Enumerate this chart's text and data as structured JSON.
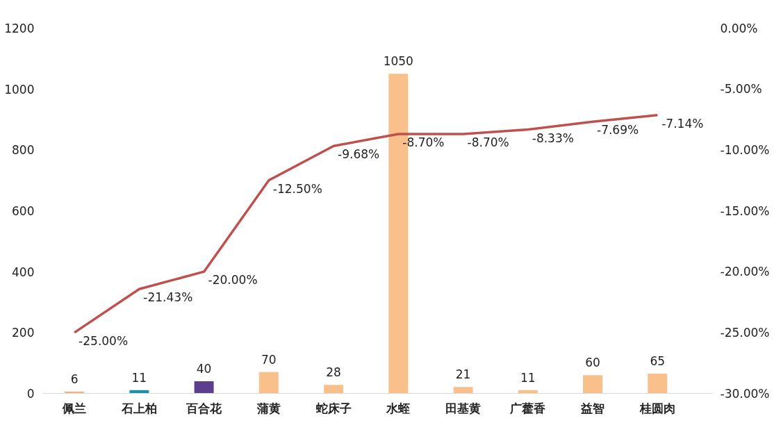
{
  "chart_data": {
    "type": "bar",
    "categories": [
      "佩兰",
      "石上柏",
      "百合花",
      "蒲黄",
      "蛇床子",
      "水蛭",
      "田基黄",
      "广藿香",
      "益智",
      "桂圆肉"
    ],
    "series": [
      {
        "colors": [
          "#f4b183",
          "#1f8fa6",
          "#5b3f8c",
          "#f9c08c",
          "#f9c08c",
          "#f9c08c",
          "#f9c08c",
          "#f9c08c",
          "#f9c08c",
          "#f9c08c"
        ],
        "values": [
          6,
          11,
          40,
          70,
          28,
          1050,
          21,
          11,
          60,
          65
        ],
        "value_labels": [
          "6",
          "11",
          "40",
          "70",
          "28",
          "1050",
          "21",
          "11",
          "60",
          "65"
        ]
      },
      {
        "type": "line",
        "axis": "y2",
        "color": "#c0504d",
        "values": [
          -25,
          -21.43,
          -20,
          -12.5,
          -9.68,
          -8.7,
          -8.7,
          -8.33,
          -7.69,
          -7.14
        ],
        "value_labels": [
          "-25.00%",
          "-21.43%",
          "-20.00%",
          "-12.50%",
          "-9.68%",
          "-8.70%",
          "-8.70%",
          "-8.33%",
          "-7.69%",
          "-7.14%"
        ]
      }
    ],
    "ylim": [
      0,
      1200
    ],
    "yticks": [
      0,
      200,
      400,
      600,
      800,
      1000,
      1200
    ],
    "y2lim": [
      -30,
      0
    ],
    "y2ticks": [
      {
        "value": -30,
        "label": "-30.00%"
      },
      {
        "value": -25,
        "label": "-25.00%"
      },
      {
        "value": -20,
        "label": "-20.00%"
      },
      {
        "value": -15,
        "label": "-15.00%"
      },
      {
        "value": -10,
        "label": "-10.00%"
      },
      {
        "value": -5,
        "label": "-5.00%"
      },
      {
        "value": 0,
        "label": "0.00%"
      }
    ],
    "grid": false,
    "marker": "none"
  }
}
